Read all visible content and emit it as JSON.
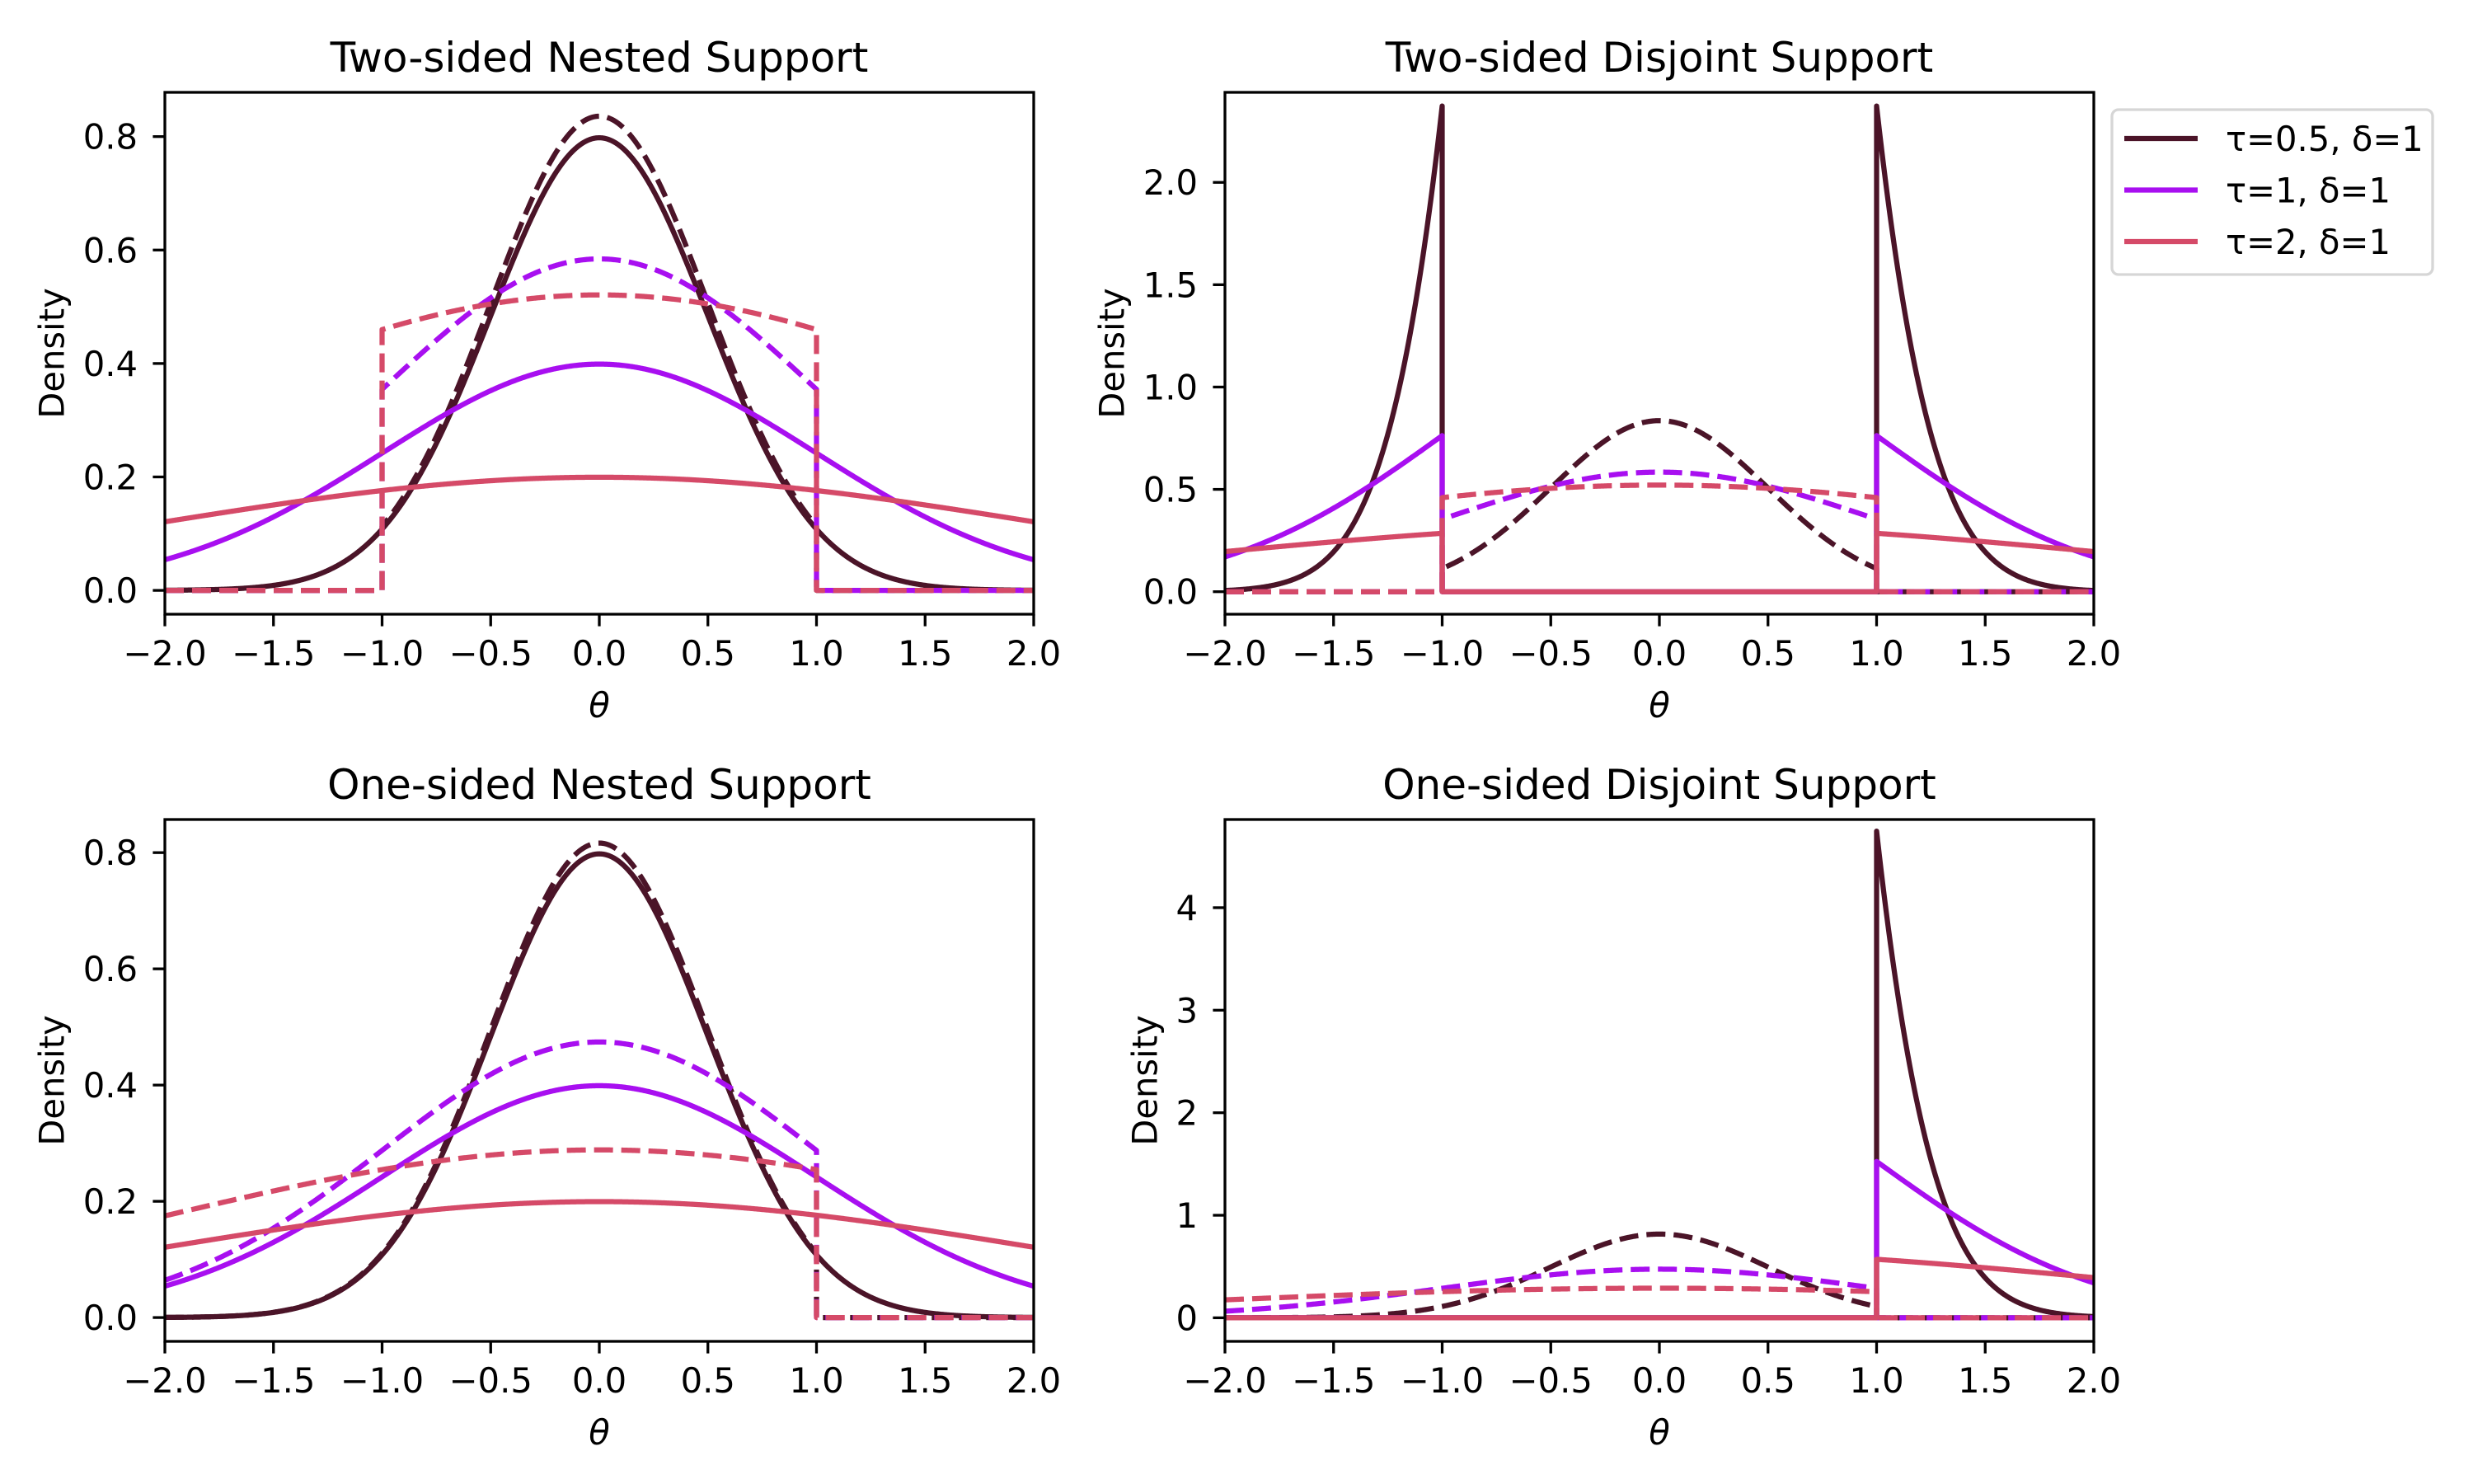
{
  "colors": {
    "tau_0_5": "#4b1428",
    "tau_1": "#a80ff0",
    "tau_2": "#d54a68"
  },
  "legend": {
    "placement": "outside-right of top-right panel",
    "entries": [
      {
        "label": "τ=0.5, δ=1",
        "color": "#4b1428"
      },
      {
        "label": "τ=1, δ=1",
        "color": "#a80ff0"
      },
      {
        "label": "τ=2, δ=1",
        "color": "#d54a68"
      }
    ]
  },
  "chart_data": [
    {
      "type": "line",
      "title": "Two-sided Nested Support",
      "xlabel": "θ",
      "ylabel": "Density",
      "xlim": [
        -2,
        2
      ],
      "ylim": [
        -0.042,
        0.878
      ],
      "xticks": [
        -2,
        -1.5,
        -1,
        -0.5,
        0,
        0.5,
        1,
        1.5,
        2
      ],
      "xtick_labels": [
        "−2.0",
        "−1.5",
        "−1.0",
        "−0.5",
        "0.0",
        "0.5",
        "1.0",
        "1.5",
        "2.0"
      ],
      "yticks": [
        0,
        0.2,
        0.4,
        0.6,
        0.8
      ],
      "ytick_labels": [
        "0.0",
        "0.2",
        "0.4",
        "0.6",
        "0.8"
      ],
      "grid": false,
      "series": [
        {
          "tau": 0.5,
          "delta": 1,
          "color": "#4b1428",
          "style": "solid",
          "density": "normal(0,τ)",
          "support": [
            [
              null,
              null
            ]
          ]
        },
        {
          "tau": 0.5,
          "delta": 1,
          "color": "#4b1428",
          "style": "dashed",
          "density": "normal(0,τ) truncated",
          "support": [
            [
              -1,
              1
            ]
          ]
        },
        {
          "tau": 1,
          "delta": 1,
          "color": "#a80ff0",
          "style": "solid",
          "density": "normal(0,τ)",
          "support": [
            [
              null,
              null
            ]
          ]
        },
        {
          "tau": 1,
          "delta": 1,
          "color": "#a80ff0",
          "style": "dashed",
          "density": "normal(0,τ) truncated",
          "support": [
            [
              -1,
              1
            ]
          ]
        },
        {
          "tau": 2,
          "delta": 1,
          "color": "#d54a68",
          "style": "solid",
          "density": "normal(0,τ)",
          "support": [
            [
              null,
              null
            ]
          ]
        },
        {
          "tau": 2,
          "delta": 1,
          "color": "#d54a68",
          "style": "dashed",
          "density": "normal(0,τ) truncated",
          "support": [
            [
              -1,
              1
            ]
          ]
        }
      ]
    },
    {
      "type": "line",
      "title": "Two-sided Disjoint Support",
      "xlabel": "θ",
      "ylabel": "Density",
      "xlim": [
        -2,
        2
      ],
      "ylim": [
        -0.11,
        2.44
      ],
      "xticks": [
        -2,
        -1.5,
        -1,
        -0.5,
        0,
        0.5,
        1,
        1.5,
        2
      ],
      "xtick_labels": [
        "−2.0",
        "−1.5",
        "−1.0",
        "−0.5",
        "0.0",
        "0.5",
        "1.0",
        "1.5",
        "2.0"
      ],
      "yticks": [
        0,
        0.5,
        1,
        1.5,
        2
      ],
      "ytick_labels": [
        "0.0",
        "0.5",
        "1.0",
        "1.5",
        "2.0"
      ],
      "grid": false,
      "series": [
        {
          "tau": 0.5,
          "delta": 1,
          "color": "#4b1428",
          "style": "solid",
          "density": "normal(0,τ) truncated",
          "support": [
            [
              null,
              -1
            ],
            [
              1,
              null
            ]
          ]
        },
        {
          "tau": 0.5,
          "delta": 1,
          "color": "#4b1428",
          "style": "dashed",
          "density": "normal(0,τ) truncated",
          "support": [
            [
              -1,
              1
            ]
          ]
        },
        {
          "tau": 1,
          "delta": 1,
          "color": "#a80ff0",
          "style": "solid",
          "density": "normal(0,τ) truncated",
          "support": [
            [
              null,
              -1
            ],
            [
              1,
              null
            ]
          ]
        },
        {
          "tau": 1,
          "delta": 1,
          "color": "#a80ff0",
          "style": "dashed",
          "density": "normal(0,τ) truncated",
          "support": [
            [
              -1,
              1
            ]
          ]
        },
        {
          "tau": 2,
          "delta": 1,
          "color": "#d54a68",
          "style": "solid",
          "density": "normal(0,τ) truncated",
          "support": [
            [
              null,
              -1
            ],
            [
              1,
              null
            ]
          ]
        },
        {
          "tau": 2,
          "delta": 1,
          "color": "#d54a68",
          "style": "dashed",
          "density": "normal(0,τ) truncated",
          "support": [
            [
              -1,
              1
            ]
          ]
        }
      ]
    },
    {
      "type": "line",
      "title": "One-sided Nested Support",
      "xlabel": "θ",
      "ylabel": "Density",
      "xlim": [
        -2,
        2
      ],
      "ylim": [
        -0.041,
        0.857
      ],
      "xticks": [
        -2,
        -1.5,
        -1,
        -0.5,
        0,
        0.5,
        1,
        1.5,
        2
      ],
      "xtick_labels": [
        "−2.0",
        "−1.5",
        "−1.0",
        "−0.5",
        "0.0",
        "0.5",
        "1.0",
        "1.5",
        "2.0"
      ],
      "yticks": [
        0,
        0.2,
        0.4,
        0.6,
        0.8
      ],
      "ytick_labels": [
        "0.0",
        "0.2",
        "0.4",
        "0.6",
        "0.8"
      ],
      "grid": false,
      "series": [
        {
          "tau": 0.5,
          "delta": 1,
          "color": "#4b1428",
          "style": "solid",
          "density": "normal(0,τ)",
          "support": [
            [
              null,
              null
            ]
          ]
        },
        {
          "tau": 0.5,
          "delta": 1,
          "color": "#4b1428",
          "style": "dashed",
          "density": "normal(0,τ) truncated",
          "support": [
            [
              null,
              1
            ]
          ]
        },
        {
          "tau": 1,
          "delta": 1,
          "color": "#a80ff0",
          "style": "solid",
          "density": "normal(0,τ)",
          "support": [
            [
              null,
              null
            ]
          ]
        },
        {
          "tau": 1,
          "delta": 1,
          "color": "#a80ff0",
          "style": "dashed",
          "density": "normal(0,τ) truncated",
          "support": [
            [
              null,
              1
            ]
          ]
        },
        {
          "tau": 2,
          "delta": 1,
          "color": "#d54a68",
          "style": "solid",
          "density": "normal(0,τ)",
          "support": [
            [
              null,
              null
            ]
          ]
        },
        {
          "tau": 2,
          "delta": 1,
          "color": "#d54a68",
          "style": "dashed",
          "density": "normal(0,τ) truncated",
          "support": [
            [
              null,
              1
            ]
          ]
        }
      ]
    },
    {
      "type": "line",
      "title": "One-sided Disjoint Support",
      "xlabel": "θ",
      "ylabel": "Density",
      "xlim": [
        -2,
        2
      ],
      "ylim": [
        -0.23,
        4.86
      ],
      "xticks": [
        -2,
        -1.5,
        -1,
        -0.5,
        0,
        0.5,
        1,
        1.5,
        2
      ],
      "xtick_labels": [
        "−2.0",
        "−1.5",
        "−1.0",
        "−0.5",
        "0.0",
        "0.5",
        "1.0",
        "1.5",
        "2.0"
      ],
      "yticks": [
        0,
        1,
        2,
        3,
        4
      ],
      "ytick_labels": [
        "0",
        "1",
        "2",
        "3",
        "4"
      ],
      "grid": false,
      "series": [
        {
          "tau": 0.5,
          "delta": 1,
          "color": "#4b1428",
          "style": "solid",
          "density": "normal(0,τ) truncated",
          "support": [
            [
              1,
              null
            ]
          ]
        },
        {
          "tau": 0.5,
          "delta": 1,
          "color": "#4b1428",
          "style": "dashed",
          "density": "normal(0,τ) truncated",
          "support": [
            [
              null,
              1
            ]
          ]
        },
        {
          "tau": 1,
          "delta": 1,
          "color": "#a80ff0",
          "style": "solid",
          "density": "normal(0,τ) truncated",
          "support": [
            [
              1,
              null
            ]
          ]
        },
        {
          "tau": 1,
          "delta": 1,
          "color": "#a80ff0",
          "style": "dashed",
          "density": "normal(0,τ) truncated",
          "support": [
            [
              null,
              1
            ]
          ]
        },
        {
          "tau": 2,
          "delta": 1,
          "color": "#d54a68",
          "style": "solid",
          "density": "normal(0,τ) truncated",
          "support": [
            [
              1,
              null
            ]
          ]
        },
        {
          "tau": 2,
          "delta": 1,
          "color": "#d54a68",
          "style": "dashed",
          "density": "normal(0,τ) truncated",
          "support": [
            [
              null,
              1
            ]
          ]
        }
      ]
    }
  ]
}
